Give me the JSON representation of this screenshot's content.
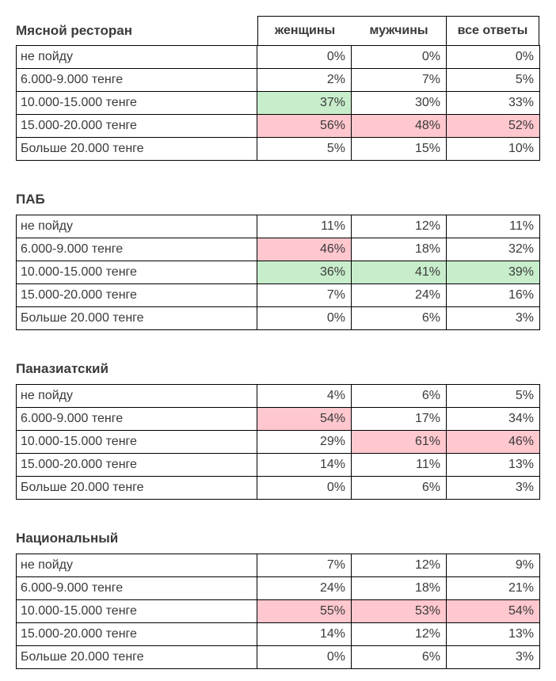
{
  "colors": {
    "highlight_green": "#c8edcb",
    "highlight_pink": "#ffc7ce",
    "text": "#3a3a3a",
    "border": "#000000"
  },
  "column_headers": [
    "женщины",
    "мужчины",
    "все ответы"
  ],
  "tables": [
    {
      "title": "Мясной ресторан",
      "has_column_headers": true,
      "rows": [
        {
          "label": "не пойду",
          "values": [
            "0%",
            "0%",
            "0%"
          ],
          "highlights": [
            "",
            "",
            ""
          ]
        },
        {
          "label": "6.000-9.000 тенге",
          "values": [
            "2%",
            "7%",
            "5%"
          ],
          "highlights": [
            "",
            "",
            ""
          ]
        },
        {
          "label": "10.000-15.000 тенге",
          "values": [
            "37%",
            "30%",
            "33%"
          ],
          "highlights": [
            "green",
            "",
            ""
          ]
        },
        {
          "label": "15.000-20.000 тенге",
          "values": [
            "56%",
            "48%",
            "52%"
          ],
          "highlights": [
            "pink",
            "pink",
            "pink"
          ]
        },
        {
          "label": "Больше 20.000 тенге",
          "values": [
            "5%",
            "15%",
            "10%"
          ],
          "highlights": [
            "",
            "",
            ""
          ]
        }
      ]
    },
    {
      "title": "ПАБ",
      "has_column_headers": false,
      "rows": [
        {
          "label": "не пойду",
          "values": [
            "11%",
            "12%",
            "11%"
          ],
          "highlights": [
            "",
            "",
            ""
          ]
        },
        {
          "label": "6.000-9.000 тенге",
          "values": [
            "46%",
            "18%",
            "32%"
          ],
          "highlights": [
            "pink",
            "",
            ""
          ]
        },
        {
          "label": "10.000-15.000 тенге",
          "values": [
            "36%",
            "41%",
            "39%"
          ],
          "highlights": [
            "green",
            "green",
            "green"
          ]
        },
        {
          "label": "15.000-20.000 тенге",
          "values": [
            "7%",
            "24%",
            "16%"
          ],
          "highlights": [
            "",
            "",
            ""
          ]
        },
        {
          "label": "Больше 20.000 тенге",
          "values": [
            "0%",
            "6%",
            "3%"
          ],
          "highlights": [
            "",
            "",
            ""
          ]
        }
      ]
    },
    {
      "title": "Паназиатский",
      "has_column_headers": false,
      "rows": [
        {
          "label": "не пойду",
          "values": [
            "4%",
            "6%",
            "5%"
          ],
          "highlights": [
            "",
            "",
            ""
          ]
        },
        {
          "label": "6.000-9.000 тенге",
          "values": [
            "54%",
            "17%",
            "34%"
          ],
          "highlights": [
            "pink",
            "",
            ""
          ]
        },
        {
          "label": "10.000-15.000 тенге",
          "values": [
            "29%",
            "61%",
            "46%"
          ],
          "highlights": [
            "",
            "pink",
            "pink"
          ]
        },
        {
          "label": "15.000-20.000 тенге",
          "values": [
            "14%",
            "11%",
            "13%"
          ],
          "highlights": [
            "",
            "",
            ""
          ]
        },
        {
          "label": "Больше 20.000 тенге",
          "values": [
            "0%",
            "6%",
            "3%"
          ],
          "highlights": [
            "",
            "",
            ""
          ]
        }
      ]
    },
    {
      "title": "Национальный",
      "has_column_headers": false,
      "rows": [
        {
          "label": "не пойду",
          "values": [
            "7%",
            "12%",
            "9%"
          ],
          "highlights": [
            "",
            "",
            ""
          ]
        },
        {
          "label": "6.000-9.000 тенге",
          "values": [
            "24%",
            "18%",
            "21%"
          ],
          "highlights": [
            "",
            "",
            ""
          ]
        },
        {
          "label": "10.000-15.000 тенге",
          "values": [
            "55%",
            "53%",
            "54%"
          ],
          "highlights": [
            "pink",
            "pink",
            "pink"
          ]
        },
        {
          "label": "15.000-20.000 тенге",
          "values": [
            "14%",
            "12%",
            "13%"
          ],
          "highlights": [
            "",
            "",
            ""
          ]
        },
        {
          "label": "Больше 20.000 тенге",
          "values": [
            "0%",
            "6%",
            "3%"
          ],
          "highlights": [
            "",
            "",
            ""
          ]
        }
      ]
    }
  ]
}
